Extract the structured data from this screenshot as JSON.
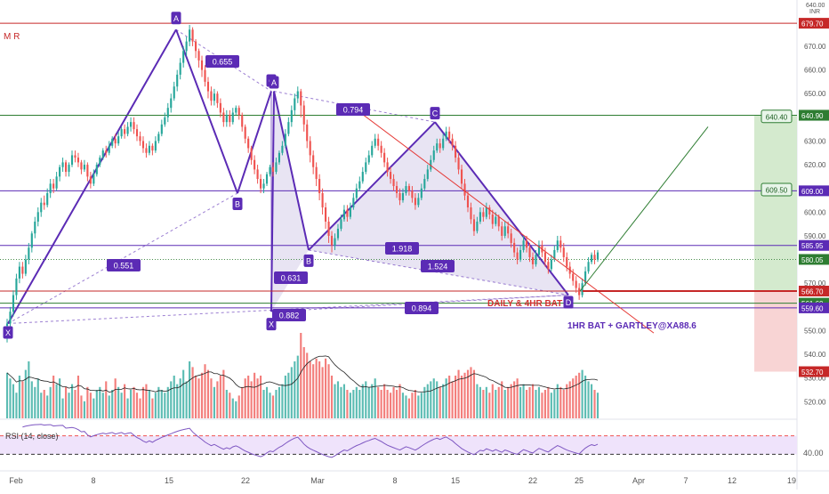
{
  "window": {
    "currency": "INR"
  },
  "indicator": {
    "name": "M R"
  },
  "rsi": {
    "label": "RSI (14, close)",
    "tick": "40.00",
    "band_upper": 70,
    "band_lower": 30
  },
  "colors": {
    "price_up": "#26a69a",
    "price_down": "#ef5350",
    "pattern": "#5b2bb5",
    "pattern_fill": "#d6cdea",
    "resistance": "#c62828",
    "support_green": "#2e7d32",
    "target_fill": "#cfe8c9",
    "stop_fill": "#f7cfcf",
    "rsi_band": "#efe3fb",
    "rsi_line": "#7e57c2",
    "trend_line": "#e53935",
    "target_line": "#2e7d32"
  },
  "chart_data": {
    "type": "candlestick",
    "ylim": [
      513,
      688
    ],
    "price_ticks": [
      "680.00",
      "670.00",
      "660.00",
      "650.00",
      "640.00",
      "630.00",
      "620.00",
      "610.00",
      "600.00",
      "590.00",
      "580.00",
      "570.00",
      "560.00",
      "550.00",
      "540.00",
      "530.00",
      "520.00"
    ],
    "x_ticks": [
      "Feb",
      "8",
      "15",
      "22",
      "Mar",
      "8",
      "15",
      "22",
      "25",
      "Apr",
      "7",
      "12",
      "19"
    ],
    "hlines": [
      {
        "price": 679.7,
        "label": "679.70",
        "color": "#c62828"
      },
      {
        "price": 640.85,
        "label": "640.85",
        "color": "#2e7d32"
      },
      {
        "price": 609.0,
        "label": "609.00",
        "color": "#5b2bb5"
      },
      {
        "price": 585.95,
        "label": "585.95",
        "color": "#5b2bb5"
      },
      {
        "price": 566.7,
        "label": "566.70",
        "color": "#c62828"
      },
      {
        "price": 561.6,
        "label": "561.60",
        "color": "#2e7d32"
      },
      {
        "price": 559.6,
        "label": "559.60",
        "color": "#5b2bb5"
      }
    ],
    "axis_labels": [
      {
        "price": 640.9,
        "label": "640.90",
        "color": "#2e7d32"
      },
      {
        "price": 580.05,
        "label": "580.05",
        "color": "#2e7d32"
      },
      {
        "price": 532.7,
        "label": "532.70",
        "color": "#c62828"
      }
    ],
    "pattern_points": {
      "X1": {
        "label": "X",
        "date": "Jan 30",
        "price": 553
      },
      "A1": {
        "label": "A",
        "date": "Feb 15",
        "price": 677
      },
      "B1": {
        "label": "B",
        "date": "Feb 21",
        "price": 608
      },
      "C1": {
        "label": "C",
        "date": "Feb 25",
        "price": 651
      },
      "X2": {
        "label": "X",
        "date": "Feb 25",
        "price": 558
      },
      "A2": {
        "label": "A",
        "date": "Feb 26",
        "price": 651
      },
      "B2": {
        "label": "B",
        "date": "Mar 1",
        "price": 584
      },
      "C2": {
        "label": "C",
        "date": "Mar 11",
        "price": 638
      },
      "D": {
        "label": "D",
        "date": "Mar 24",
        "price": 565
      }
    },
    "ratios": [
      "0.655",
      "0.551",
      "0.794",
      "0.631",
      "0.882",
      "1.918",
      "1.524",
      "0.894"
    ],
    "targets": [
      {
        "label": "640.40",
        "price": 640.4
      },
      {
        "label": "609.50",
        "price": 609.5
      }
    ],
    "annotations": [
      "DAILY & 4HR BAT",
      "1HR BAT + GARTLEY@XA88.6"
    ],
    "candles": [
      [
        552,
        553,
        545,
        555,
        32
      ],
      [
        553,
        558,
        550,
        560,
        28
      ],
      [
        558,
        565,
        556,
        567,
        24
      ],
      [
        565,
        572,
        563,
        574,
        18
      ],
      [
        572,
        577,
        570,
        579,
        30
      ],
      [
        577,
        574,
        572,
        579,
        26
      ],
      [
        574,
        580,
        573,
        582,
        34
      ],
      [
        580,
        585,
        578,
        587,
        40
      ],
      [
        585,
        591,
        583,
        592,
        26
      ],
      [
        591,
        596,
        589,
        598,
        22
      ],
      [
        596,
        600,
        594,
        602,
        28
      ],
      [
        600,
        604,
        598,
        606,
        18
      ],
      [
        604,
        603,
        601,
        607,
        20
      ],
      [
        603,
        608,
        602,
        610,
        16
      ],
      [
        608,
        612,
        606,
        614,
        22
      ],
      [
        612,
        610,
        608,
        614,
        30
      ],
      [
        610,
        615,
        609,
        617,
        24
      ],
      [
        615,
        619,
        613,
        620,
        28
      ],
      [
        619,
        621,
        617,
        623,
        14
      ],
      [
        621,
        617,
        615,
        622,
        22
      ],
      [
        617,
        620,
        615,
        621,
        18
      ],
      [
        620,
        624,
        619,
        626,
        24
      ],
      [
        624,
        623,
        621,
        626,
        20
      ],
      [
        623,
        621,
        619,
        625,
        30
      ],
      [
        621,
        618,
        616,
        622,
        16
      ],
      [
        618,
        620,
        617,
        622,
        12
      ],
      [
        620,
        615,
        613,
        621,
        22
      ],
      [
        615,
        612,
        610,
        617,
        18
      ],
      [
        612,
        616,
        611,
        618,
        14
      ],
      [
        616,
        620,
        615,
        621,
        20
      ],
      [
        620,
        623,
        619,
        624,
        22
      ],
      [
        623,
        626,
        622,
        627,
        18
      ],
      [
        626,
        625,
        623,
        628,
        26
      ],
      [
        625,
        628,
        624,
        630,
        16
      ],
      [
        628,
        631,
        627,
        632,
        20
      ],
      [
        631,
        629,
        627,
        633,
        28
      ],
      [
        629,
        632,
        628,
        634,
        22
      ],
      [
        632,
        635,
        631,
        636,
        18
      ],
      [
        635,
        633,
        631,
        637,
        24
      ],
      [
        633,
        636,
        632,
        638,
        14
      ],
      [
        636,
        638,
        634,
        640,
        20
      ],
      [
        638,
        635,
        633,
        640,
        22
      ],
      [
        635,
        632,
        630,
        637,
        18
      ],
      [
        632,
        630,
        628,
        634,
        14
      ],
      [
        630,
        627,
        625,
        632,
        22
      ],
      [
        627,
        625,
        623,
        629,
        24
      ],
      [
        625,
        628,
        624,
        630,
        20
      ],
      [
        628,
        626,
        624,
        629,
        14
      ],
      [
        626,
        630,
        625,
        632,
        18
      ],
      [
        630,
        633,
        629,
        634,
        22
      ],
      [
        633,
        637,
        632,
        639,
        20
      ],
      [
        637,
        640,
        636,
        642,
        18
      ],
      [
        640,
        644,
        638,
        646,
        22
      ],
      [
        644,
        648,
        642,
        650,
        26
      ],
      [
        648,
        653,
        647,
        655,
        30
      ],
      [
        653,
        658,
        651,
        660,
        24
      ],
      [
        658,
        663,
        656,
        665,
        28
      ],
      [
        663,
        668,
        661,
        670,
        34
      ],
      [
        668,
        672,
        666,
        674,
        26
      ],
      [
        672,
        677,
        670,
        679,
        40
      ],
      [
        677,
        672,
        670,
        678,
        36
      ],
      [
        672,
        668,
        665,
        673,
        30
      ],
      [
        668,
        664,
        661,
        669,
        28
      ],
      [
        664,
        660,
        657,
        666,
        32
      ],
      [
        660,
        655,
        653,
        662,
        38
      ],
      [
        655,
        651,
        648,
        657,
        34
      ],
      [
        651,
        647,
        645,
        653,
        28
      ],
      [
        647,
        650,
        645,
        652,
        22
      ],
      [
        650,
        646,
        644,
        651,
        26
      ],
      [
        646,
        642,
        640,
        648,
        30
      ],
      [
        642,
        638,
        636,
        644,
        34
      ],
      [
        638,
        641,
        636,
        643,
        20
      ],
      [
        641,
        638,
        636,
        643,
        18
      ],
      [
        638,
        642,
        637,
        644,
        14
      ],
      [
        642,
        644,
        641,
        645,
        12
      ],
      [
        644,
        641,
        639,
        645,
        16
      ],
      [
        641,
        636,
        634,
        642,
        22
      ],
      [
        636,
        631,
        629,
        637,
        28
      ],
      [
        631,
        627,
        625,
        632,
        30
      ],
      [
        627,
        622,
        620,
        628,
        26
      ],
      [
        622,
        618,
        616,
        624,
        32
      ],
      [
        618,
        614,
        612,
        620,
        28
      ],
      [
        614,
        610,
        608,
        616,
        30
      ],
      [
        610,
        612,
        608,
        614,
        20
      ],
      [
        612,
        616,
        611,
        617,
        22
      ],
      [
        616,
        619,
        615,
        620,
        18
      ],
      [
        619,
        617,
        615,
        621,
        16
      ],
      [
        617,
        621,
        616,
        623,
        20
      ],
      [
        621,
        625,
        620,
        626,
        22
      ],
      [
        625,
        628,
        624,
        630,
        24
      ],
      [
        628,
        633,
        627,
        635,
        30
      ],
      [
        633,
        638,
        632,
        640,
        32
      ],
      [
        638,
        643,
        636,
        645,
        36
      ],
      [
        643,
        648,
        641,
        650,
        40
      ],
      [
        648,
        651,
        646,
        653,
        44
      ],
      [
        651,
        645,
        640,
        652,
        60
      ],
      [
        645,
        637,
        634,
        647,
        50
      ],
      [
        637,
        630,
        627,
        639,
        46
      ],
      [
        630,
        624,
        621,
        632,
        40
      ],
      [
        624,
        619,
        616,
        626,
        38
      ],
      [
        619,
        614,
        611,
        621,
        42
      ],
      [
        614,
        608,
        605,
        616,
        40
      ],
      [
        608,
        602,
        599,
        610,
        36
      ],
      [
        602,
        596,
        593,
        604,
        42
      ],
      [
        596,
        590,
        587,
        598,
        38
      ],
      [
        590,
        586,
        583,
        592,
        30
      ],
      [
        586,
        589,
        584,
        591,
        24
      ],
      [
        589,
        593,
        588,
        595,
        26
      ],
      [
        593,
        597,
        592,
        599,
        22
      ],
      [
        597,
        601,
        596,
        603,
        24
      ],
      [
        601,
        598,
        596,
        603,
        20
      ],
      [
        598,
        602,
        597,
        604,
        18
      ],
      [
        602,
        606,
        601,
        608,
        20
      ],
      [
        606,
        610,
        605,
        612,
        22
      ],
      [
        610,
        613,
        609,
        615,
        20
      ],
      [
        613,
        617,
        612,
        619,
        24
      ],
      [
        617,
        621,
        616,
        623,
        26
      ],
      [
        621,
        624,
        620,
        626,
        22
      ],
      [
        624,
        628,
        623,
        630,
        24
      ],
      [
        628,
        631,
        627,
        633,
        28
      ],
      [
        631,
        628,
        626,
        633,
        22
      ],
      [
        628,
        625,
        623,
        630,
        20
      ],
      [
        625,
        621,
        619,
        627,
        24
      ],
      [
        621,
        617,
        615,
        623,
        20
      ],
      [
        617,
        614,
        612,
        619,
        18
      ],
      [
        614,
        611,
        609,
        616,
        22
      ],
      [
        611,
        608,
        606,
        613,
        20
      ],
      [
        608,
        605,
        603,
        610,
        24
      ],
      [
        605,
        608,
        604,
        610,
        18
      ],
      [
        608,
        611,
        607,
        613,
        16
      ],
      [
        611,
        609,
        607,
        612,
        14
      ],
      [
        609,
        606,
        604,
        611,
        18
      ],
      [
        606,
        603,
        601,
        608,
        20
      ],
      [
        603,
        606,
        602,
        608,
        16
      ],
      [
        606,
        610,
        605,
        612,
        18
      ],
      [
        610,
        614,
        609,
        616,
        22
      ],
      [
        614,
        618,
        613,
        620,
        24
      ],
      [
        618,
        622,
        617,
        624,
        26
      ],
      [
        622,
        626,
        621,
        628,
        28
      ],
      [
        626,
        629,
        625,
        631,
        26
      ],
      [
        629,
        627,
        625,
        631,
        22
      ],
      [
        627,
        631,
        626,
        633,
        24
      ],
      [
        631,
        634,
        630,
        636,
        28
      ],
      [
        634,
        631,
        629,
        636,
        30
      ],
      [
        631,
        628,
        626,
        633,
        26
      ],
      [
        628,
        623,
        621,
        630,
        30
      ],
      [
        623,
        618,
        616,
        625,
        34
      ],
      [
        618,
        612,
        610,
        620,
        30
      ],
      [
        612,
        607,
        605,
        614,
        32
      ],
      [
        607,
        602,
        600,
        609,
        34
      ],
      [
        602,
        597,
        595,
        604,
        36
      ],
      [
        597,
        592,
        590,
        599,
        34
      ],
      [
        592,
        596,
        591,
        598,
        24
      ],
      [
        596,
        600,
        595,
        602,
        22
      ],
      [
        600,
        598,
        596,
        602,
        20
      ],
      [
        598,
        602,
        597,
        604,
        22
      ],
      [
        602,
        599,
        597,
        603,
        18
      ],
      [
        599,
        595,
        593,
        601,
        24
      ],
      [
        595,
        598,
        594,
        600,
        20
      ],
      [
        598,
        594,
        592,
        599,
        22
      ],
      [
        594,
        590,
        588,
        596,
        26
      ],
      [
        590,
        594,
        589,
        596,
        20
      ],
      [
        594,
        591,
        589,
        596,
        22
      ],
      [
        591,
        587,
        585,
        593,
        24
      ],
      [
        587,
        583,
        581,
        589,
        26
      ],
      [
        583,
        580,
        578,
        585,
        28
      ],
      [
        580,
        584,
        579,
        586,
        22
      ],
      [
        584,
        588,
        583,
        590,
        24
      ],
      [
        588,
        585,
        583,
        590,
        20
      ],
      [
        585,
        581,
        579,
        587,
        22
      ],
      [
        581,
        578,
        576,
        583,
        24
      ],
      [
        578,
        582,
        577,
        584,
        20
      ],
      [
        582,
        586,
        581,
        588,
        22
      ],
      [
        586,
        583,
        581,
        588,
        18
      ],
      [
        583,
        579,
        577,
        585,
        20
      ],
      [
        579,
        576,
        574,
        581,
        22
      ],
      [
        576,
        580,
        575,
        582,
        18
      ],
      [
        580,
        584,
        579,
        586,
        20
      ],
      [
        584,
        588,
        583,
        590,
        24
      ],
      [
        588,
        585,
        583,
        590,
        22
      ],
      [
        585,
        581,
        579,
        587,
        20
      ],
      [
        581,
        577,
        575,
        583,
        24
      ],
      [
        577,
        574,
        572,
        579,
        26
      ],
      [
        574,
        571,
        569,
        576,
        28
      ],
      [
        571,
        568,
        566,
        573,
        30
      ],
      [
        568,
        565,
        563,
        570,
        32
      ],
      [
        565,
        570,
        564,
        572,
        34
      ],
      [
        570,
        575,
        569,
        577,
        30
      ],
      [
        575,
        579,
        574,
        581,
        26
      ],
      [
        579,
        582,
        578,
        583,
        24
      ],
      [
        582,
        580,
        578,
        584,
        20
      ],
      [
        580,
        583,
        579,
        584,
        18
      ]
    ]
  }
}
